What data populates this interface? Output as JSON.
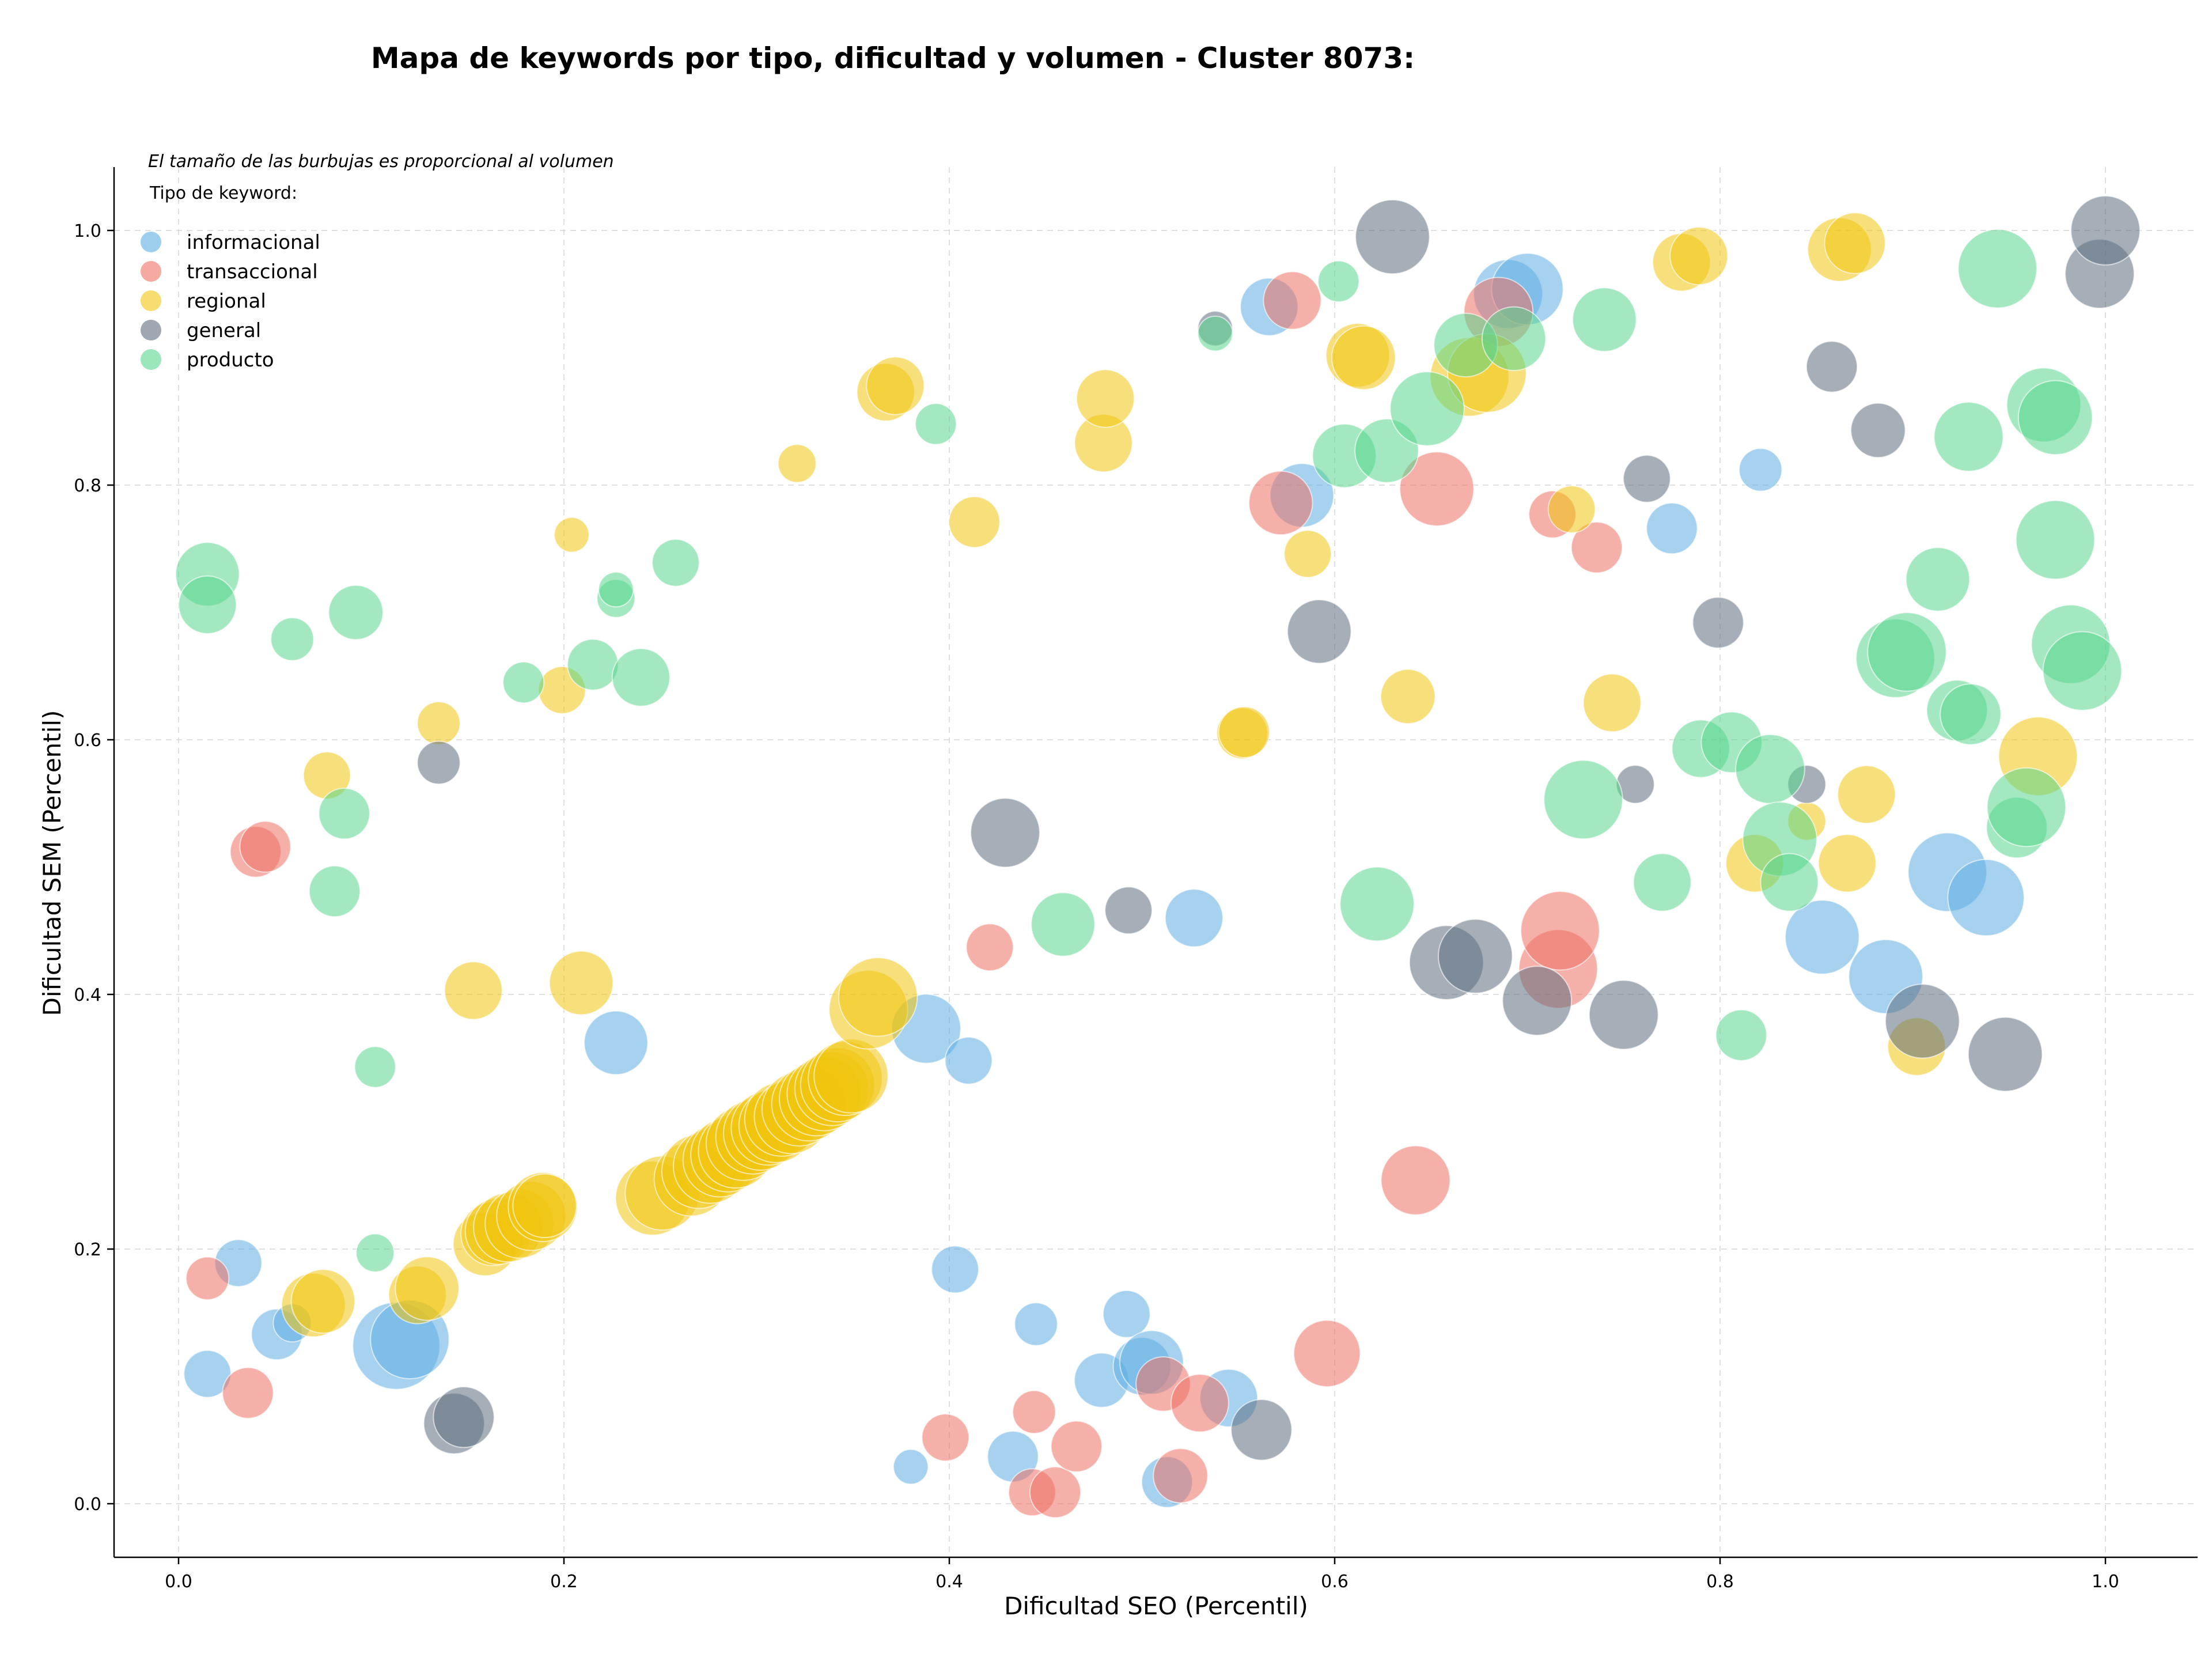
{
  "chart_data": {
    "type": "scatter",
    "title": "Mapa de keywords por tipo, dificultad y volumen - Cluster 8073:",
    "xlabel": "Dificultad SEO (Percentil)",
    "ylabel": "Dificultad SEM (Percentil)",
    "note": "El tamaño de las burbujas es proporcional al volumen",
    "legend_title": "Tipo de keyword:",
    "legend_position": "top-left",
    "grid": true,
    "xlim": [
      -0.033,
      1.048
    ],
    "ylim": [
      -0.04,
      1.05
    ],
    "xticks": [
      "0.0",
      "0.2",
      "0.4",
      "0.6",
      "0.8",
      "1.0"
    ],
    "yticks": [
      "0.0",
      "0.2",
      "0.4",
      "0.6",
      "0.8",
      "1.0"
    ],
    "size_unit": "relative volume",
    "series": [
      {
        "name": "informacional",
        "color": "#5dade2",
        "points": [
          [
            0.015,
            0.102,
            2.5
          ],
          [
            0.031,
            0.189,
            2.5
          ],
          [
            0.051,
            0.133,
            3
          ],
          [
            0.059,
            0.142,
            1.5
          ],
          [
            0.113,
            0.124,
            10
          ],
          [
            0.12,
            0.129,
            8
          ],
          [
            0.227,
            0.362,
            5
          ],
          [
            0.388,
            0.373,
            6
          ],
          [
            0.41,
            0.348,
            2.5
          ],
          [
            0.403,
            0.184,
            2.5
          ],
          [
            0.445,
            0.141,
            2
          ],
          [
            0.433,
            0.037,
            3
          ],
          [
            0.38,
            0.029,
            1.2
          ],
          [
            0.479,
            0.097,
            3.5
          ],
          [
            0.492,
            0.149,
            2.5
          ],
          [
            0.5,
            0.108,
            4
          ],
          [
            0.505,
            0.111,
            5
          ],
          [
            0.513,
            0.017,
            3
          ],
          [
            0.545,
            0.083,
            4
          ],
          [
            0.527,
            0.46,
            4
          ],
          [
            0.566,
            0.94,
            4
          ],
          [
            0.583,
            0.792,
            5
          ],
          [
            0.69,
            0.95,
            6
          ],
          [
            0.7,
            0.954,
            6.5
          ],
          [
            0.775,
            0.766,
            3
          ],
          [
            0.821,
            0.812,
            2
          ],
          [
            0.853,
            0.445,
            7
          ],
          [
            0.886,
            0.414,
            7
          ],
          [
            0.918,
            0.496,
            8
          ],
          [
            0.938,
            0.476,
            7.5
          ]
        ]
      },
      {
        "name": "transaccional",
        "color": "#ec7063",
        "points": [
          [
            0.015,
            0.177,
            2
          ],
          [
            0.036,
            0.087,
            3
          ],
          [
            0.04,
            0.512,
            3
          ],
          [
            0.045,
            0.516,
            3
          ],
          [
            0.398,
            0.052,
            2.5
          ],
          [
            0.421,
            0.437,
            2.5
          ],
          [
            0.443,
            0.009,
            2.5
          ],
          [
            0.444,
            0.072,
            2
          ],
          [
            0.455,
            0.009,
            3
          ],
          [
            0.466,
            0.045,
            3
          ],
          [
            0.511,
            0.094,
            3.5
          ],
          [
            0.52,
            0.022,
            3.5
          ],
          [
            0.53,
            0.079,
            4
          ],
          [
            0.572,
            0.786,
            5
          ],
          [
            0.578,
            0.945,
            4
          ],
          [
            0.596,
            0.118,
            5.5
          ],
          [
            0.642,
            0.254,
            6
          ],
          [
            0.653,
            0.797,
            7
          ],
          [
            0.685,
            0.936,
            6
          ],
          [
            0.713,
            0.777,
            2.5
          ],
          [
            0.716,
            0.42,
            8
          ],
          [
            0.717,
            0.45,
            8
          ],
          [
            0.736,
            0.751,
            3
          ]
        ]
      },
      {
        "name": "regional",
        "color": "#f1c40f",
        "points": [
          [
            0.07,
            0.156,
            5
          ],
          [
            0.075,
            0.159,
            5
          ],
          [
            0.077,
            0.572,
            2.5
          ],
          [
            0.124,
            0.164,
            4
          ],
          [
            0.129,
            0.169,
            5
          ],
          [
            0.135,
            0.613,
            2
          ],
          [
            0.153,
            0.403,
            4
          ],
          [
            0.159,
            0.204,
            5
          ],
          [
            0.163,
            0.212,
            5
          ],
          [
            0.166,
            0.214,
            5.5
          ],
          [
            0.171,
            0.217,
            6
          ],
          [
            0.177,
            0.22,
            6
          ],
          [
            0.183,
            0.226,
            6
          ],
          [
            0.189,
            0.233,
            6
          ],
          [
            0.19,
            0.234,
            5
          ],
          [
            0.199,
            0.639,
            2.5
          ],
          [
            0.204,
            0.761,
            1.2
          ],
          [
            0.209,
            0.409,
            5
          ],
          [
            0.246,
            0.24,
            7
          ],
          [
            0.251,
            0.244,
            7
          ],
          [
            0.266,
            0.255,
            7
          ],
          [
            0.27,
            0.261,
            7
          ],
          [
            0.276,
            0.265,
            7
          ],
          [
            0.281,
            0.27,
            7
          ],
          [
            0.285,
            0.274,
            7
          ],
          [
            0.289,
            0.277,
            7
          ],
          [
            0.293,
            0.283,
            7
          ],
          [
            0.298,
            0.288,
            7
          ],
          [
            0.302,
            0.291,
            7
          ],
          [
            0.306,
            0.295,
            7
          ],
          [
            0.31,
            0.297,
            7
          ],
          [
            0.313,
            0.302,
            7
          ],
          [
            0.318,
            0.304,
            7
          ],
          [
            0.322,
            0.31,
            7
          ],
          [
            0.327,
            0.314,
            7
          ],
          [
            0.331,
            0.318,
            7
          ],
          [
            0.335,
            0.322,
            7
          ],
          [
            0.339,
            0.326,
            7
          ],
          [
            0.342,
            0.329,
            7
          ],
          [
            0.346,
            0.334,
            7
          ],
          [
            0.349,
            0.336,
            7
          ],
          [
            0.358,
            0.388,
            8
          ],
          [
            0.363,
            0.398,
            8
          ],
          [
            0.321,
            0.817,
            1.5
          ],
          [
            0.367,
            0.873,
            4
          ],
          [
            0.372,
            0.878,
            4
          ],
          [
            0.413,
            0.771,
            3
          ],
          [
            0.48,
            0.833,
            4
          ],
          [
            0.481,
            0.868,
            4
          ],
          [
            0.552,
            0.605,
            3
          ],
          [
            0.553,
            0.606,
            3
          ],
          [
            0.586,
            0.746,
            2.5
          ],
          [
            0.612,
            0.902,
            5
          ],
          [
            0.615,
            0.9,
            5
          ],
          [
            0.638,
            0.634,
            3.5
          ],
          [
            0.67,
            0.885,
            8
          ],
          [
            0.679,
            0.888,
            8
          ],
          [
            0.723,
            0.781,
            2.5
          ],
          [
            0.744,
            0.629,
            4
          ],
          [
            0.78,
            0.975,
            4
          ],
          [
            0.789,
            0.98,
            4
          ],
          [
            0.818,
            0.503,
            4
          ],
          [
            0.845,
            0.536,
            1.5
          ],
          [
            0.862,
            0.985,
            5
          ],
          [
            0.87,
            0.99,
            4.5
          ],
          [
            0.866,
            0.503,
            4
          ],
          [
            0.876,
            0.557,
            4
          ],
          [
            0.902,
            0.359,
            4
          ],
          [
            0.965,
            0.587,
            8
          ]
        ]
      },
      {
        "name": "general",
        "color": "#5d6d7e",
        "points": [
          [
            0.135,
            0.582,
            2
          ],
          [
            0.143,
            0.063,
            4.5
          ],
          [
            0.148,
            0.068,
            4.5
          ],
          [
            0.429,
            0.527,
            6
          ],
          [
            0.493,
            0.466,
            2.5
          ],
          [
            0.538,
            0.923,
            1.2
          ],
          [
            0.562,
            0.058,
            4.5
          ],
          [
            0.592,
            0.685,
            5
          ],
          [
            0.63,
            0.995,
            7
          ],
          [
            0.658,
            0.425,
            7
          ],
          [
            0.673,
            0.43,
            7
          ],
          [
            0.705,
            0.395,
            6
          ],
          [
            0.75,
            0.384,
            6
          ],
          [
            0.756,
            0.565,
            1.5
          ],
          [
            0.762,
            0.805,
            2.5
          ],
          [
            0.799,
            0.692,
            3
          ],
          [
            0.845,
            0.565,
            1.5
          ],
          [
            0.858,
            0.893,
            3
          ],
          [
            0.882,
            0.843,
            3.5
          ],
          [
            0.905,
            0.379,
            7
          ],
          [
            0.948,
            0.353,
            7
          ],
          [
            0.997,
            0.966,
            6
          ],
          [
            1.0,
            1.0,
            6
          ]
        ]
      },
      {
        "name": "producto",
        "color": "#58d68d",
        "points": [
          [
            0.015,
            0.73,
            5
          ],
          [
            0.015,
            0.706,
            4
          ],
          [
            0.059,
            0.679,
            2
          ],
          [
            0.081,
            0.481,
            3
          ],
          [
            0.086,
            0.542,
            3
          ],
          [
            0.092,
            0.7,
            3.5
          ],
          [
            0.102,
            0.197,
            1.5
          ],
          [
            0.102,
            0.343,
            1.8
          ],
          [
            0.179,
            0.645,
            1.8
          ],
          [
            0.215,
            0.659,
            3
          ],
          [
            0.227,
            0.711,
            1.5
          ],
          [
            0.227,
            0.718,
            1.2
          ],
          [
            0.24,
            0.649,
            4
          ],
          [
            0.258,
            0.739,
            2.5
          ],
          [
            0.393,
            0.848,
            1.8
          ],
          [
            0.459,
            0.455,
            5
          ],
          [
            0.538,
            0.919,
            1.2
          ],
          [
            0.602,
            0.96,
            1.8
          ],
          [
            0.605,
            0.823,
            5
          ],
          [
            0.627,
            0.827,
            5
          ],
          [
            0.622,
            0.471,
            7
          ],
          [
            0.648,
            0.86,
            7
          ],
          [
            0.668,
            0.91,
            5
          ],
          [
            0.693,
            0.915,
            5
          ],
          [
            0.74,
            0.93,
            5
          ],
          [
            0.729,
            0.553,
            8
          ],
          [
            0.77,
            0.488,
            4
          ],
          [
            0.79,
            0.593,
            4
          ],
          [
            0.806,
            0.598,
            4.5
          ],
          [
            0.811,
            0.368,
            3
          ],
          [
            0.826,
            0.577,
            6
          ],
          [
            0.831,
            0.522,
            7
          ],
          [
            0.836,
            0.488,
            4
          ],
          [
            0.891,
            0.664,
            8
          ],
          [
            0.897,
            0.669,
            8
          ],
          [
            0.913,
            0.726,
            5
          ],
          [
            0.923,
            0.623,
            4.5
          ],
          [
            0.929,
            0.838,
            6
          ],
          [
            0.93,
            0.62,
            4.5
          ],
          [
            0.944,
            0.97,
            8
          ],
          [
            0.954,
            0.531,
            4.5
          ],
          [
            0.959,
            0.547,
            8
          ],
          [
            0.968,
            0.863,
            7
          ],
          [
            0.974,
            0.853,
            7
          ],
          [
            0.974,
            0.757,
            8
          ],
          [
            0.982,
            0.675,
            8
          ],
          [
            0.988,
            0.654,
            8
          ]
        ]
      }
    ]
  }
}
